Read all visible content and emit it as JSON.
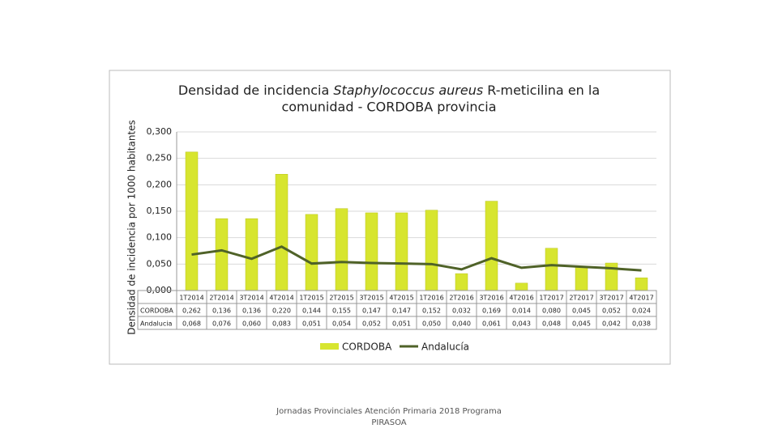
{
  "chart_data": {
    "type": "bar-line",
    "title": [
      [
        "Densidad de incidencia ",
        "Staphylococcus aureus",
        " R-meticilina en la"
      ],
      [
        "comunidad - CORDOBA provincia"
      ]
    ],
    "y_label": "Densidad de incidencia por 1000 habitantes",
    "categories": [
      "1T2014",
      "2T2014",
      "3T2014",
      "4T2014",
      "1T2015",
      "2T2015",
      "3T2015",
      "4T2015",
      "1T2016",
      "2T2016",
      "3T2016",
      "4T2016",
      "1T2017",
      "2T2017",
      "3T2017",
      "4T2017"
    ],
    "series": [
      {
        "name": "CORDOBA",
        "kind": "bar",
        "color": "#d7e52f",
        "values": [
          0.262,
          0.136,
          0.136,
          0.22,
          0.144,
          0.155,
          0.147,
          0.147,
          0.152,
          0.032,
          0.169,
          0.014,
          0.08,
          0.045,
          0.052,
          0.024
        ],
        "value_labels": [
          "0,262",
          "0,136",
          "0,136",
          "0,220",
          "0,144",
          "0,155",
          "0,147",
          "0,147",
          "0,152",
          "0,032",
          "0,169",
          "0,014",
          "0,080",
          "0,045",
          "0,052",
          "0,024"
        ]
      },
      {
        "name": "Andalucía",
        "kind": "line",
        "color": "#4f6228",
        "values": [
          0.068,
          0.076,
          0.06,
          0.083,
          0.051,
          0.054,
          0.052,
          0.051,
          0.05,
          0.04,
          0.061,
          0.043,
          0.048,
          0.045,
          0.042,
          0.038
        ],
        "value_labels": [
          "0,068",
          "0,076",
          "0,060",
          "0,083",
          "0,051",
          "0,054",
          "0,052",
          "0,051",
          "0,050",
          "0,040",
          "0,061",
          "0,043",
          "0,048",
          "0,045",
          "0,042",
          "0,038"
        ]
      }
    ],
    "table_row_labels": [
      "CORDOBA",
      "Andalucia"
    ],
    "ylim": [
      0,
      0.3
    ],
    "yticks": [
      {
        "value": 0,
        "label": "0,000"
      },
      {
        "value": 0.05,
        "label": "0,050"
      },
      {
        "value": 0.1,
        "label": "0,100"
      },
      {
        "value": 0.15,
        "label": "0,150"
      },
      {
        "value": 0.2,
        "label": "0,200"
      },
      {
        "value": 0.25,
        "label": "0,250"
      },
      {
        "value": 0.3,
        "label": "0,300"
      }
    ],
    "grid": true
  },
  "footer": [
    "Jornadas Provinciales Atención Primaria 2018 Programa",
    "PIRASOA"
  ]
}
